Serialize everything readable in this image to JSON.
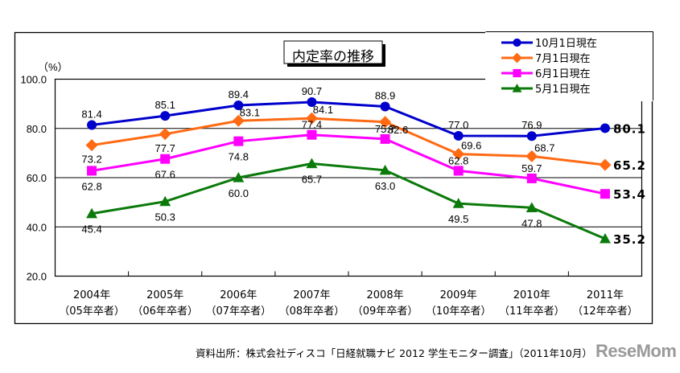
{
  "chart_data": {
    "type": "line",
    "title": "内定率の推移",
    "ylabel": "（%）",
    "xlabel": "",
    "ylim": [
      20,
      100
    ],
    "yticks": [
      100,
      80,
      60,
      40,
      20
    ],
    "ytick_labels": [
      "100.0",
      "80.0",
      "60.0",
      "40.0",
      "20.0"
    ],
    "grid": true,
    "legend_position": "top-right",
    "categories": [
      "2004年",
      "2005年",
      "2006年",
      "2007年",
      "2008年",
      "2009年",
      "2010年",
      "2011年"
    ],
    "category_sublabels": [
      "（05年卒者）",
      "（06年卒者）",
      "（07年卒者）",
      "（08年卒者）",
      "（09年卒者）",
      "（10年卒者）",
      "（11年卒者）",
      "（12年卒者）"
    ],
    "series": [
      {
        "name": "10月1日現在",
        "color": "#0000cc",
        "marker": "circle",
        "values": [
          81.4,
          85.1,
          89.4,
          90.7,
          88.9,
          77.0,
          76.9,
          80.1
        ],
        "labels": [
          "81.4",
          "85.1",
          "89.4",
          "90.7",
          "88.9",
          "77.0",
          "76.9",
          "80.1"
        ]
      },
      {
        "name": "7月1日現在",
        "color": "#ff6a13",
        "marker": "diamond",
        "values": [
          73.2,
          77.7,
          83.1,
          84.1,
          82.6,
          69.6,
          68.7,
          65.2
        ],
        "labels": [
          "73.2",
          "77.7",
          "83.1",
          "84.1",
          "82.6",
          "69.6",
          "68.7",
          "65.2"
        ]
      },
      {
        "name": "6月1日現在",
        "color": "#ff00ff",
        "marker": "square",
        "values": [
          62.8,
          67.6,
          74.8,
          77.4,
          75.7,
          62.8,
          59.7,
          53.4
        ],
        "labels": [
          "62.8",
          "67.6",
          "74.8",
          "77.4",
          "75.7",
          "62.8",
          "59.7",
          "53.4"
        ]
      },
      {
        "name": "5月1日現在",
        "color": "#0a7a0a",
        "marker": "triangle",
        "values": [
          45.4,
          50.3,
          60.0,
          65.7,
          63.0,
          49.5,
          47.8,
          35.2
        ],
        "labels": [
          "45.4",
          "50.3",
          "60.0",
          "65.7",
          "63.0",
          "49.5",
          "47.8",
          "35.2"
        ]
      }
    ]
  },
  "source_text": "資料出所：株式会社ディスコ「日経就職ナビ 2012 学生モニター調査」（2011年10月）",
  "watermark": "ReseMom"
}
